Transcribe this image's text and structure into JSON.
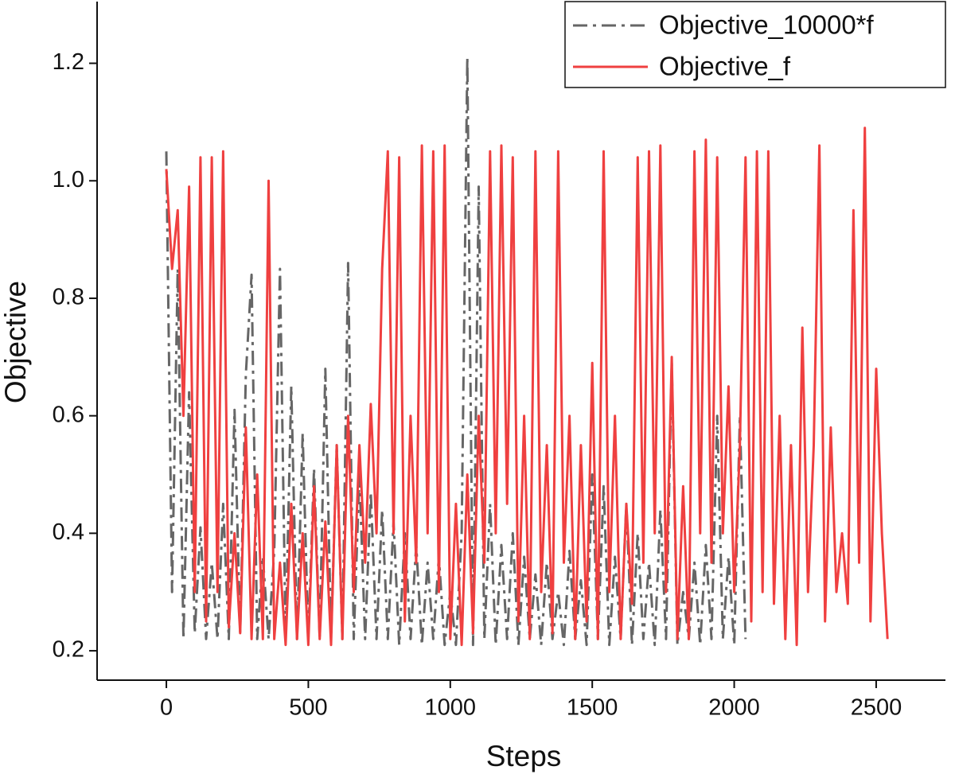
{
  "chart_data": {
    "type": "line",
    "x_label": "Steps",
    "y_label": "Objective",
    "x": [
      0,
      20,
      40,
      60,
      80,
      100,
      120,
      140,
      160,
      180,
      200,
      220,
      240,
      260,
      280,
      300,
      320,
      340,
      360,
      380,
      400,
      420,
      440,
      460,
      480,
      500,
      520,
      540,
      560,
      580,
      600,
      620,
      640,
      660,
      680,
      700,
      720,
      740,
      760,
      780,
      800,
      820,
      840,
      860,
      880,
      900,
      920,
      940,
      960,
      980,
      1000,
      1020,
      1040,
      1060,
      1080,
      1100,
      1120,
      1140,
      1160,
      1180,
      1200,
      1220,
      1240,
      1260,
      1280,
      1300,
      1320,
      1340,
      1360,
      1380,
      1400,
      1420,
      1440,
      1460,
      1480,
      1500,
      1520,
      1540,
      1560,
      1580,
      1600,
      1620,
      1640,
      1660,
      1680,
      1700,
      1720,
      1740,
      1760,
      1780,
      1800,
      1820,
      1840,
      1860,
      1880,
      1900,
      1920,
      1940,
      1960,
      1980,
      2000,
      2020,
      2040,
      2060,
      2080,
      2100,
      2120,
      2140,
      2160,
      2180,
      2200,
      2220,
      2240,
      2260,
      2280,
      2300,
      2320,
      2340,
      2360,
      2380,
      2400,
      2420,
      2440,
      2460,
      2480,
      2500,
      2520,
      2540
    ],
    "series": [
      {
        "name": "Objective_10000*f",
        "color": "#666666",
        "dash": "dashdot",
        "values": [
          1.05,
          0.3,
          0.85,
          0.22,
          0.64,
          0.23,
          0.41,
          0.22,
          0.35,
          0.22,
          0.45,
          0.22,
          0.61,
          0.23,
          0.67,
          0.84,
          0.22,
          0.36,
          0.22,
          0.37,
          0.85,
          0.22,
          0.65,
          0.22,
          0.57,
          0.22,
          0.51,
          0.22,
          0.68,
          0.22,
          0.55,
          0.22,
          0.86,
          0.22,
          0.5,
          0.22,
          0.47,
          0.22,
          0.44,
          0.22,
          0.42,
          0.21,
          0.4,
          0.22,
          0.38,
          0.21,
          0.35,
          0.22,
          0.36,
          0.21,
          0.3,
          0.21,
          0.4,
          1.21,
          0.21,
          0.99,
          0.22,
          0.45,
          0.21,
          0.38,
          0.22,
          0.4,
          0.21,
          0.36,
          0.22,
          0.33,
          0.21,
          0.35,
          0.22,
          0.3,
          0.21,
          0.37,
          0.22,
          0.32,
          0.21,
          0.5,
          0.22,
          0.48,
          0.21,
          0.36,
          0.22,
          0.45,
          0.21,
          0.4,
          0.22,
          0.35,
          0.21,
          0.44,
          0.22,
          0.69,
          0.21,
          0.3,
          0.22,
          0.35,
          0.21,
          0.38,
          0.22,
          0.6,
          0.22,
          0.36,
          0.21,
          0.6,
          0.22,
          null,
          null,
          null,
          null,
          null,
          null,
          null,
          null,
          null,
          null,
          null,
          null,
          null,
          null,
          null,
          null,
          null,
          null,
          null,
          null,
          null,
          null,
          null,
          null,
          null
        ]
      },
      {
        "name": "Objective_f",
        "color": "#ef4040",
        "dash": "solid",
        "values": [
          1.02,
          0.85,
          0.95,
          0.6,
          0.99,
          0.3,
          1.04,
          0.25,
          1.04,
          0.3,
          1.05,
          0.24,
          0.4,
          0.23,
          0.58,
          0.22,
          0.5,
          0.22,
          1.0,
          0.22,
          0.35,
          0.21,
          0.45,
          0.22,
          0.4,
          0.21,
          0.48,
          0.22,
          0.42,
          0.21,
          0.55,
          0.22,
          0.6,
          0.3,
          0.55,
          0.35,
          0.62,
          0.4,
          0.85,
          1.05,
          0.4,
          1.04,
          0.25,
          0.6,
          0.35,
          1.06,
          0.4,
          1.05,
          0.3,
          1.06,
          0.22,
          0.45,
          0.21,
          0.5,
          0.23,
          0.6,
          0.35,
          1.05,
          0.4,
          1.06,
          0.45,
          1.04,
          0.25,
          0.6,
          0.22,
          1.05,
          0.3,
          0.55,
          0.23,
          1.05,
          0.35,
          0.6,
          0.22,
          0.55,
          0.25,
          0.69,
          0.22,
          1.05,
          0.3,
          0.6,
          0.22,
          0.45,
          0.28,
          1.04,
          0.35,
          1.05,
          0.4,
          1.06,
          0.3,
          0.7,
          0.22,
          0.48,
          0.22,
          1.05,
          0.4,
          1.07,
          0.35,
          1.04,
          0.4,
          0.65,
          0.3,
          0.55,
          1.04,
          0.25,
          1.05,
          0.3,
          1.05,
          0.28,
          0.6,
          0.22,
          0.55,
          0.21,
          0.75,
          0.3,
          0.55,
          1.06,
          0.25,
          0.58,
          0.3,
          0.4,
          0.28,
          0.95,
          0.35,
          1.09,
          0.25,
          0.68,
          0.4,
          0.22
        ]
      }
    ],
    "xlim": [
      -244,
      2744
    ],
    "ylim": [
      0.15,
      1.305
    ],
    "xticks": [
      0,
      500,
      1000,
      1500,
      2000,
      2500
    ],
    "yticks": [
      0.2,
      0.4,
      0.6,
      0.8,
      {
        "value": 1,
        "label": "1.0"
      },
      1.2
    ],
    "legend": "upper right",
    "grid": false
  }
}
